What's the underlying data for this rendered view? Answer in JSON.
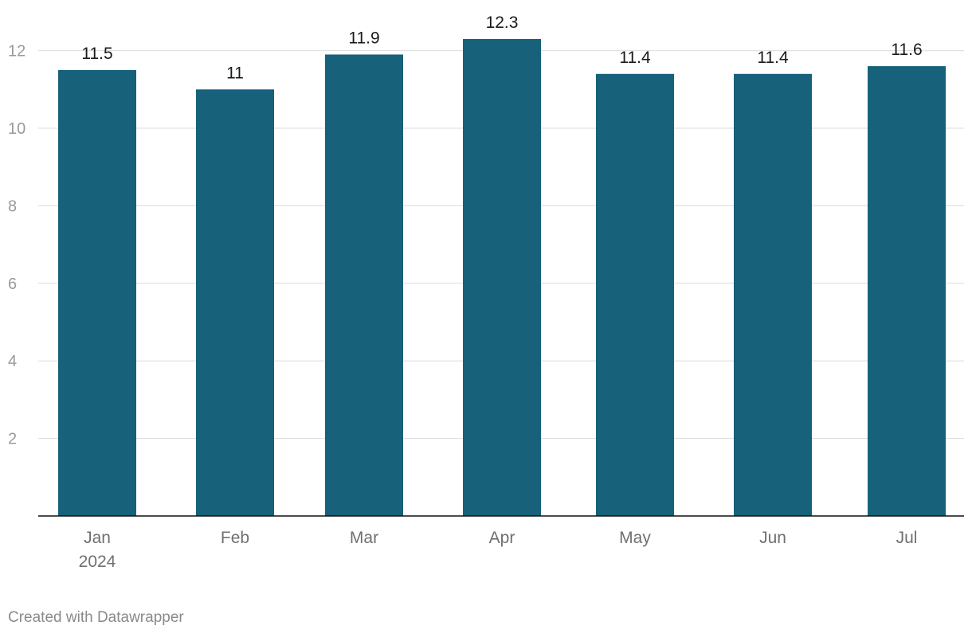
{
  "chart_data": {
    "type": "bar",
    "categories": [
      "Jan",
      "Feb",
      "Mar",
      "Apr",
      "May",
      "Jun",
      "Jul"
    ],
    "category_sublabels": [
      "2024",
      "",
      "",
      "",
      "",
      "",
      ""
    ],
    "values": [
      11.5,
      11,
      11.9,
      12.3,
      11.4,
      11.4,
      11.6
    ],
    "value_labels": [
      "11.5",
      "11",
      "11.9",
      "12.3",
      "11.4",
      "11.4",
      "11.6"
    ],
    "yticks": [
      2,
      4,
      6,
      8,
      10,
      12
    ],
    "ylim": [
      0,
      13.2
    ],
    "grid": true,
    "bar_color": "#17617a",
    "title": "",
    "xlabel": "",
    "ylabel": ""
  },
  "footer": {
    "credit": "Created with Datawrapper"
  }
}
